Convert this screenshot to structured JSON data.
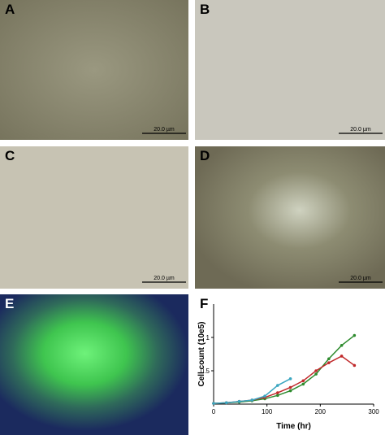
{
  "panels": [
    {
      "label": "A",
      "scale_bar": "20.0 µm"
    },
    {
      "label": "B",
      "scale_bar": "20.0 µm"
    },
    {
      "label": "C",
      "scale_bar": "20.0 µm"
    },
    {
      "label": "D",
      "scale_bar": "20.0 µm"
    },
    {
      "label": "E"
    },
    {
      "label": "F"
    }
  ],
  "chart_data": {
    "type": "line",
    "x_label": "Time (hr)",
    "y_label": "Cell count (10e5)",
    "xlim": [
      0,
      300
    ],
    "xticks": [
      0,
      100,
      200,
      300
    ],
    "ylim": [
      0,
      1.5
    ],
    "yticks": [
      0.5,
      1.0
    ],
    "series": [
      {
        "color": "#2e8b2e",
        "x": [
          0,
          24,
          48,
          72,
          96,
          120,
          144,
          168,
          192,
          216,
          240,
          264
        ],
        "values": [
          0.01,
          0.02,
          0.03,
          0.05,
          0.08,
          0.13,
          0.2,
          0.3,
          0.45,
          0.68,
          0.88,
          1.03
        ]
      },
      {
        "color": "#c0282a",
        "x": [
          0,
          24,
          48,
          72,
          96,
          120,
          144,
          168,
          192,
          216,
          240,
          264
        ],
        "values": [
          0.01,
          0.02,
          0.04,
          0.06,
          0.1,
          0.17,
          0.25,
          0.35,
          0.5,
          0.62,
          0.72,
          0.58
        ]
      },
      {
        "color": "#3aa6c0",
        "x": [
          0,
          24,
          48,
          72,
          96,
          120,
          144
        ],
        "values": [
          0.01,
          0.02,
          0.04,
          0.06,
          0.12,
          0.28,
          0.38
        ]
      }
    ]
  }
}
